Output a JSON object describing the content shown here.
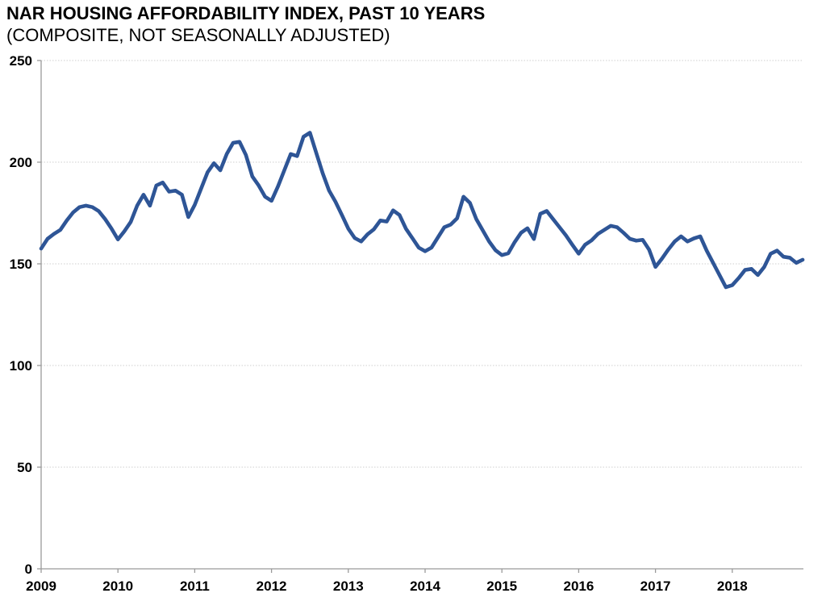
{
  "title": "NAR HOUSING AFFORDABILITY INDEX, PAST 10 YEARS",
  "subtitle": "(COMPOSITE, NOT SEASONALLY ADJUSTED)",
  "chart_data": {
    "type": "line",
    "title": "NAR HOUSING AFFORDABILITY INDEX, PAST 10 YEARS",
    "subtitle": "(COMPOSITE, NOT SEASONALLY ADJUSTED)",
    "frequency": "monthly",
    "x_start": "2009-01",
    "x_end": "2018-12",
    "x_tick_labels": [
      "2009",
      "2010",
      "2011",
      "2012",
      "2013",
      "2014",
      "2015",
      "2016",
      "2017",
      "2018"
    ],
    "y_ticks": [
      0,
      50,
      100,
      150,
      200,
      250
    ],
    "ylim": [
      0,
      250
    ],
    "grid": "horizontal-only",
    "legend": "none",
    "line_color": "#2e5596",
    "axis_color": "#9a9a9a",
    "gridline_color": "#cfcfcf",
    "series": [
      {
        "name": "Housing Affordability Index, Composite, Not Seasonally Adjusted",
        "values": [
          157.5,
          162.3,
          164.7,
          166.7,
          171.3,
          175.3,
          177.9,
          178.6,
          177.9,
          175.9,
          172.0,
          167.3,
          162.0,
          166.0,
          170.6,
          178.6,
          184.0,
          178.6,
          188.5,
          190.0,
          185.5,
          186.0,
          184.0,
          173.0,
          179.0,
          187.0,
          195.0,
          199.5,
          196.0,
          204.0,
          209.5,
          210.0,
          203.5,
          193.0,
          188.5,
          183.0,
          181.0,
          188.0,
          196.0,
          204.0,
          203.0,
          212.5,
          214.5,
          204.5,
          194.5,
          186.0,
          180.5,
          174.0,
          167.3,
          162.7,
          161.0,
          164.5,
          167.0,
          171.3,
          170.8,
          176.3,
          174.0,
          167.3,
          162.7,
          158.0,
          156.2,
          158.0,
          163.0,
          168.0,
          169.3,
          172.4,
          183.0,
          180.0,
          172.0,
          166.5,
          161.0,
          156.7,
          154.3,
          155.2,
          160.7,
          165.3,
          167.5,
          162.2,
          174.6,
          176.0,
          172.0,
          168.0,
          164.0,
          159.4,
          155.0,
          159.4,
          161.5,
          164.7,
          166.7,
          168.7,
          168.0,
          165.3,
          162.3,
          161.4,
          161.8,
          157.0,
          148.5,
          152.5,
          157.0,
          161.0,
          163.5,
          161.0,
          162.5,
          163.5,
          156.5,
          150.5,
          144.5,
          138.5,
          139.5,
          143.0,
          147.0,
          147.5,
          144.5,
          148.5,
          155.0,
          156.5,
          153.5,
          153.0,
          150.5,
          152.0
        ]
      }
    ]
  }
}
